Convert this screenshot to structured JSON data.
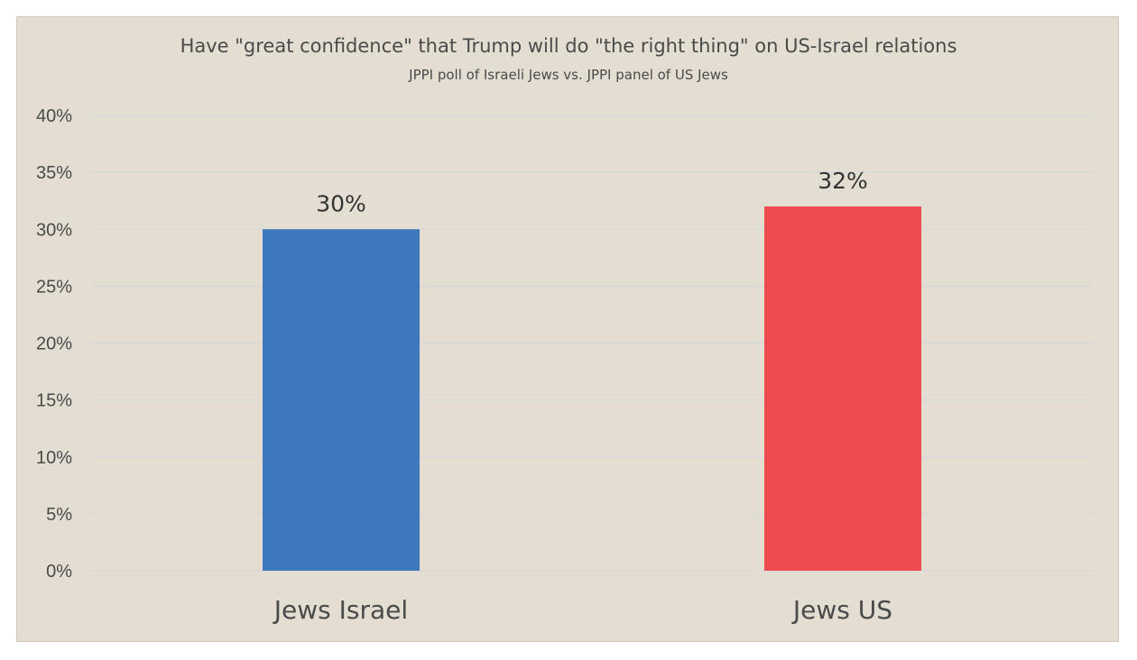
{
  "chart_data": {
    "type": "bar",
    "title": "Have \"great confidence\" that Trump will do \"the right thing\" on US-Israel relations",
    "subtitle": "JPPI poll of Israeli Jews vs. JPPI panel of US Jews",
    "categories": [
      "Jews Israel",
      "Jews US"
    ],
    "values": [
      30,
      32
    ],
    "data_labels": [
      "30%",
      "32%"
    ],
    "bar_colors": [
      "#3d78bd",
      "#ed4b4d"
    ],
    "ylim": [
      0,
      40
    ],
    "yticks": [
      0,
      5,
      10,
      15,
      20,
      25,
      30,
      35,
      40
    ],
    "ytick_labels": [
      "0%",
      "5%",
      "10%",
      "15%",
      "20%",
      "25%",
      "30%",
      "35%",
      "40%"
    ],
    "xlabel": "",
    "ylabel": "",
    "grid": true,
    "legend": "none",
    "background_color": "#e3ded1",
    "grid_color": "#d3d6dc"
  }
}
